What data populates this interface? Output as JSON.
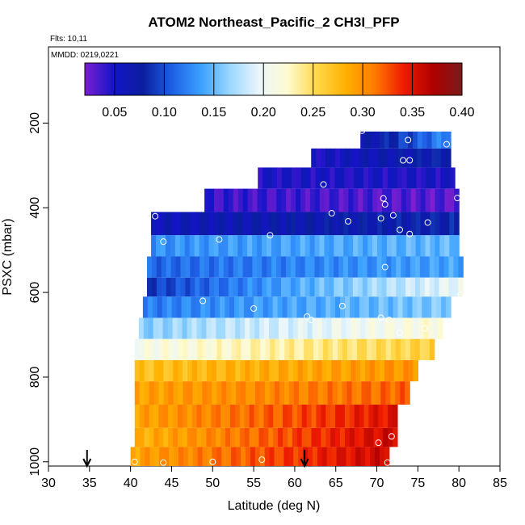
{
  "chart_data": {
    "type": "heatmap",
    "title": "ATOM2 Northeast_Pacific_2 CH3I_PFP",
    "flights_label": "Flts: 10,11",
    "dates_label": "MMDD: 0219,0221",
    "xlabel": "Latitude (deg N)",
    "ylabel": "PSXC (mbar)",
    "xlim": [
      30,
      85
    ],
    "ylim": [
      1010,
      20
    ],
    "x_ticks": [
      "30",
      "35",
      "40",
      "45",
      "50",
      "55",
      "60",
      "65",
      "70",
      "75",
      "80",
      "85"
    ],
    "y_ticks": [
      "200",
      "400",
      "600",
      "800",
      "1000"
    ],
    "colorbar": {
      "range": [
        0.02,
        0.4
      ],
      "tick_labels": [
        "0.05",
        "0.10",
        "0.15",
        "0.20",
        "0.25",
        "0.30",
        "0.35",
        "0.40"
      ],
      "colors": [
        "#7b1fd1",
        "#1414c8",
        "#0a1e9e",
        "#1e5fe6",
        "#3aa0ff",
        "#9ad7ff",
        "#eaf6fb",
        "#fffbd0",
        "#ffd84a",
        "#ffb000",
        "#ff7a00",
        "#ee1a00",
        "#b00000",
        "#7a1a1a"
      ]
    },
    "rows": [
      {
        "p": [
          220,
          260
        ],
        "lat": [
          68.0,
          79.0
        ],
        "value": [
          0.06,
          0.13
        ]
      },
      {
        "p": [
          260,
          305
        ],
        "lat": [
          62.0,
          79.0
        ],
        "value": [
          0.05,
          0.08
        ]
      },
      {
        "p": [
          305,
          355
        ],
        "lat": [
          55.5,
          79.5
        ],
        "value": [
          0.05,
          0.05
        ]
      },
      {
        "p": [
          355,
          410
        ],
        "lat": [
          49.0,
          80.0
        ],
        "value": [
          0.04,
          0.03
        ]
      },
      {
        "p": [
          410,
          465
        ],
        "lat": [
          42.5,
          80.0
        ],
        "value": [
          0.06,
          0.08
        ]
      },
      {
        "p": [
          465,
          515
        ],
        "lat": [
          42.5,
          80.0
        ],
        "value": [
          0.13,
          0.15
        ]
      },
      {
        "p": [
          515,
          565
        ],
        "lat": [
          42.0,
          80.5
        ],
        "value": [
          0.11,
          0.14
        ]
      },
      {
        "p": [
          565,
          610
        ],
        "lat": [
          42.0,
          80.5
        ],
        "value": [
          0.09,
          0.2
        ]
      },
      {
        "p": [
          610,
          660
        ],
        "lat": [
          41.5,
          79.0
        ],
        "value": [
          0.12,
          0.16
        ]
      },
      {
        "p": [
          660,
          710
        ],
        "lat": [
          41.0,
          78.0
        ],
        "value": [
          0.16,
          0.22
        ]
      },
      {
        "p": [
          710,
          760
        ],
        "lat": [
          40.5,
          77.0
        ],
        "value": [
          0.21,
          0.26
        ]
      },
      {
        "p": [
          760,
          810
        ],
        "lat": [
          40.5,
          75.0
        ],
        "value": [
          0.27,
          0.3
        ]
      },
      {
        "p": [
          810,
          865
        ],
        "lat": [
          40.5,
          74.0
        ],
        "value": [
          0.29,
          0.32
        ]
      },
      {
        "p": [
          865,
          920
        ],
        "lat": [
          40.5,
          72.5
        ],
        "value": [
          0.29,
          0.35
        ]
      },
      {
        "p": [
          920,
          965
        ],
        "lat": [
          40.5,
          72.5
        ],
        "value": [
          0.28,
          0.36
        ]
      },
      {
        "p": [
          965,
          1010
        ],
        "lat": [
          40.0,
          71.5
        ],
        "value": [
          0.29,
          0.36
        ]
      }
    ],
    "sample_points": [
      [
        68.2,
        218
      ],
      [
        73.8,
        240
      ],
      [
        78.5,
        250
      ],
      [
        73.2,
        288
      ],
      [
        74.0,
        288
      ],
      [
        63.5,
        345
      ],
      [
        70.8,
        378
      ],
      [
        71.0,
        392
      ],
      [
        79.8,
        377
      ],
      [
        64.5,
        413
      ],
      [
        72.0,
        418
      ],
      [
        66.5,
        432
      ],
      [
        70.5,
        425
      ],
      [
        76.2,
        435
      ],
      [
        43.0,
        420
      ],
      [
        72.8,
        452
      ],
      [
        74.0,
        462
      ],
      [
        44.0,
        480
      ],
      [
        50.8,
        475
      ],
      [
        57.0,
        465
      ],
      [
        71.0,
        540
      ],
      [
        80.2,
        605
      ],
      [
        48.8,
        620
      ],
      [
        55.0,
        638
      ],
      [
        65.8,
        632
      ],
      [
        61.5,
        657
      ],
      [
        62.0,
        665
      ],
      [
        70.5,
        660
      ],
      [
        71.5,
        665
      ],
      [
        72.8,
        695
      ],
      [
        75.8,
        685
      ],
      [
        70.2,
        955
      ],
      [
        71.8,
        940
      ],
      [
        40.5,
        1000
      ],
      [
        44.0,
        1002
      ],
      [
        50.0,
        1000
      ],
      [
        56.0,
        995
      ],
      [
        71.3,
        1002
      ]
    ],
    "arrows": [
      34.7,
      61.2
    ]
  }
}
